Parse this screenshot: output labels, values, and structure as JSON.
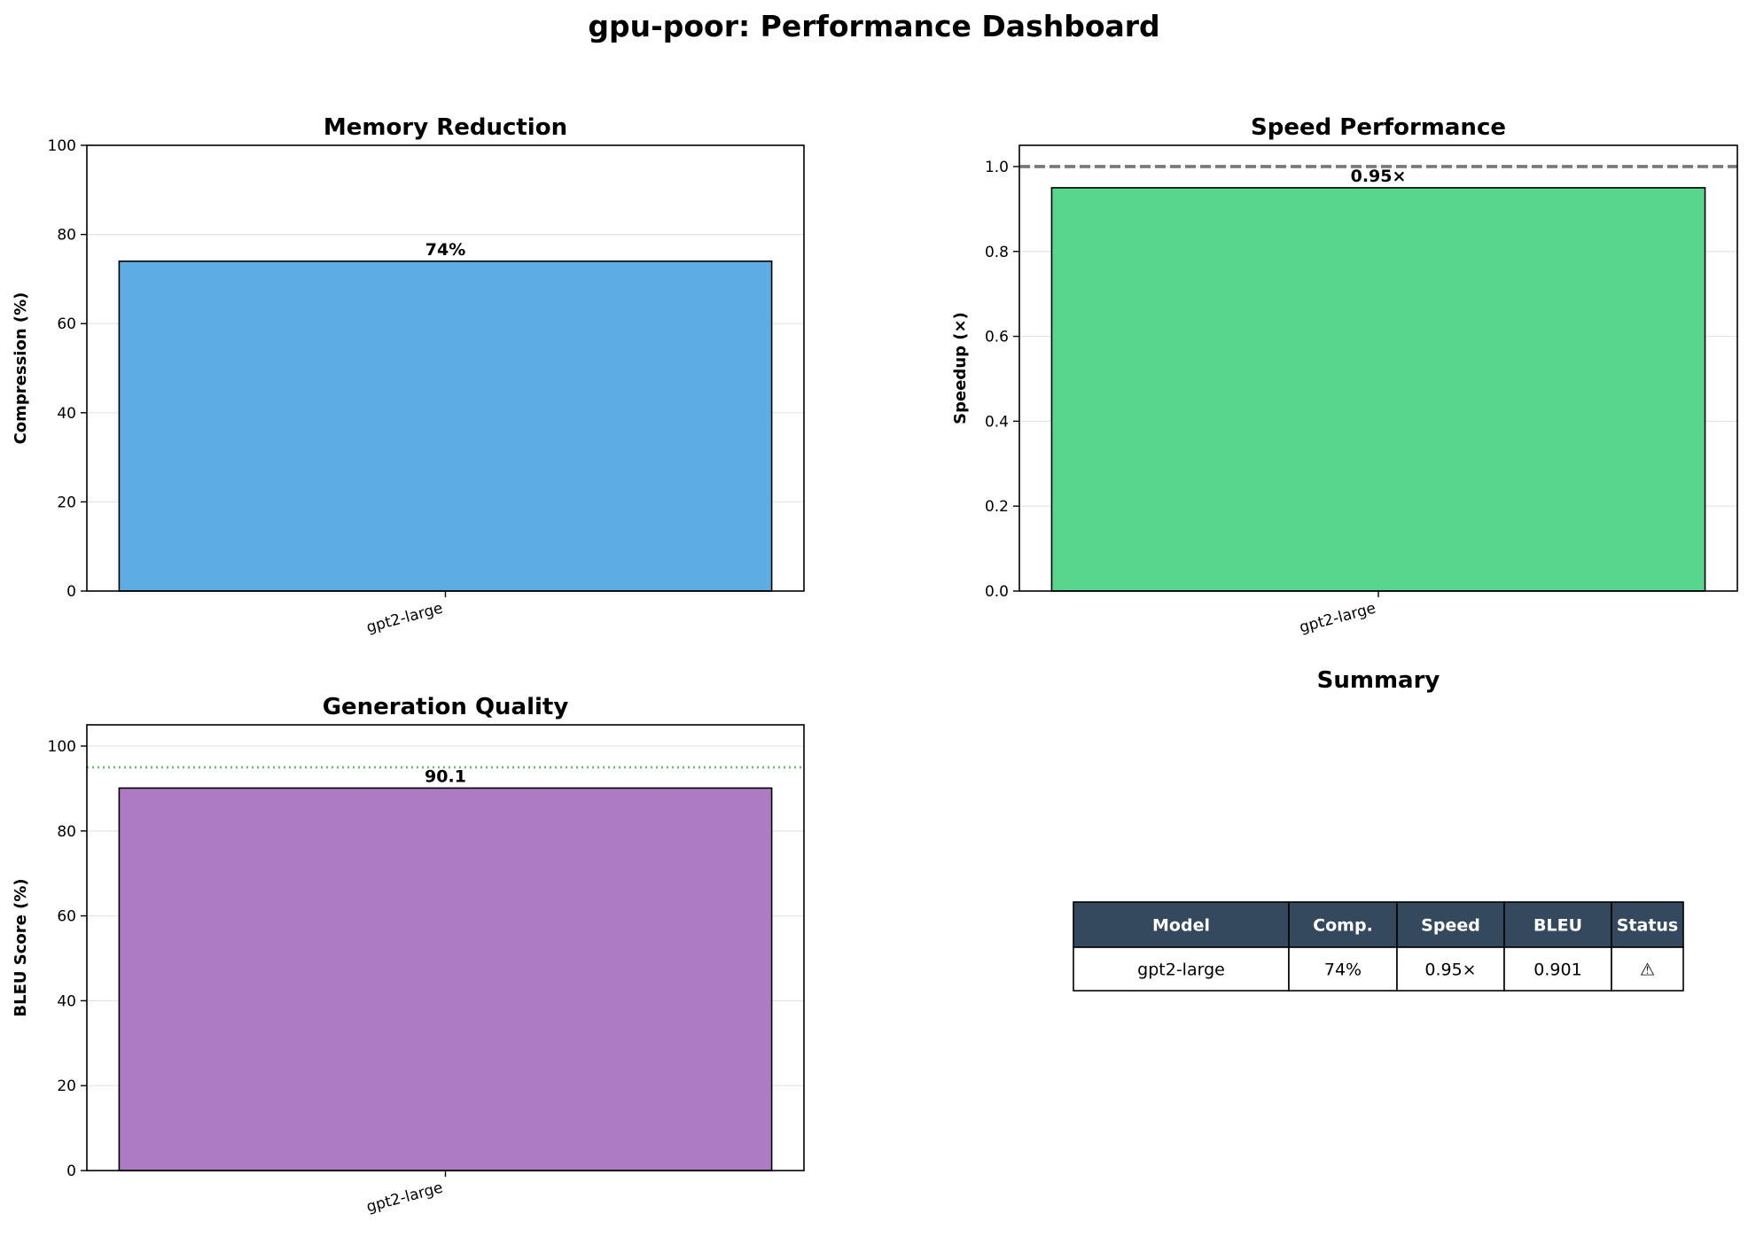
{
  "title": "gpu-poor: Performance Dashboard",
  "colors": {
    "memory_bar": "#5dade2",
    "speed_bar": "#58d68d",
    "quality_bar": "#ad7bc3",
    "baseline_line": "#777777",
    "quality_target_line": "#6abf69",
    "table_header_bg": "#34495e"
  },
  "chart_data": [
    {
      "type": "bar",
      "title": "Memory Reduction",
      "xlabel": "",
      "ylabel": "Compression (%)",
      "categories": [
        "gpt2-large"
      ],
      "values": [
        74
      ],
      "value_labels": [
        "74%"
      ],
      "ylim": [
        0,
        100
      ],
      "yticks": [
        0,
        20,
        40,
        60,
        80,
        100
      ],
      "ytick_labels": [
        "0",
        "20",
        "40",
        "60",
        "80",
        "100"
      ],
      "grid": true,
      "bar_color": "#5dade2"
    },
    {
      "type": "bar",
      "title": "Speed Performance",
      "xlabel": "",
      "ylabel": "Speedup (×)",
      "categories": [
        "gpt2-large"
      ],
      "values": [
        0.95
      ],
      "value_labels": [
        "0.95×"
      ],
      "ylim": [
        0,
        1.05
      ],
      "yticks": [
        0.0,
        0.2,
        0.4,
        0.6,
        0.8,
        1.0
      ],
      "ytick_labels": [
        "0.0",
        "0.2",
        "0.4",
        "0.6",
        "0.8",
        "1.0"
      ],
      "grid": true,
      "bar_color": "#58d68d",
      "reference_line": {
        "y": 1.0,
        "style": "dashed",
        "color": "#777777"
      }
    },
    {
      "type": "bar",
      "title": "Generation Quality",
      "xlabel": "",
      "ylabel": "BLEU Score (%)",
      "categories": [
        "gpt2-large"
      ],
      "values": [
        90.1
      ],
      "value_labels": [
        "90.1"
      ],
      "ylim": [
        0,
        105
      ],
      "yticks": [
        0,
        20,
        40,
        60,
        80,
        100
      ],
      "ytick_labels": [
        "0",
        "20",
        "40",
        "60",
        "80",
        "100"
      ],
      "grid": true,
      "bar_color": "#ad7bc3",
      "reference_line": {
        "y": 95,
        "style": "dotted",
        "color": "#6abf69"
      }
    },
    {
      "type": "table",
      "title": "Summary",
      "columns": [
        "Model",
        "Comp.",
        "Speed",
        "BLEU",
        "Status"
      ],
      "rows": [
        [
          "gpt2-large",
          "74%",
          "0.95×",
          "0.901",
          "⚠"
        ]
      ]
    }
  ]
}
